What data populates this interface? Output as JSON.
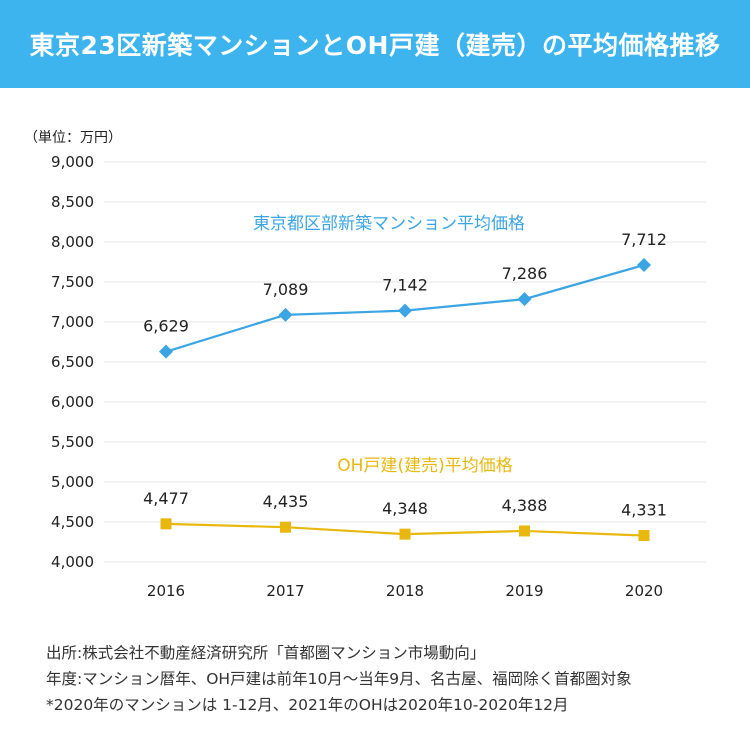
{
  "header": {
    "title": "東京23区新築マンションとOH戸建（建売）の平均価格推移"
  },
  "colors": {
    "header_bg": "#3db4ee",
    "mansion": "#3ba5e3",
    "oh": "#e8b80e",
    "grid": "#e6e6e6"
  },
  "chart_data": {
    "type": "line",
    "unit_label": "（単位：万円）",
    "x": [
      "2016",
      "2017",
      "2018",
      "2019",
      "2020"
    ],
    "ylim": [
      4000,
      9000
    ],
    "yticks": [
      "4,000",
      "4,500",
      "5,000",
      "5,500",
      "6,000",
      "6,500",
      "7,000",
      "7,500",
      "8,000",
      "8,500",
      "9,000"
    ],
    "grid": true,
    "series": [
      {
        "name": "東京都区部新築マンション平均価格",
        "values": [
          6629,
          7089,
          7142,
          7286,
          7712
        ],
        "labels": [
          "6,629",
          "7,089",
          "7,142",
          "7,286",
          "7,712"
        ],
        "marker": "diamond",
        "color": "#3ba5e3"
      },
      {
        "name": "OH戸建(建売)平均価格",
        "values": [
          4477,
          4435,
          4348,
          4388,
          4331
        ],
        "labels": [
          "4,477",
          "4,435",
          "4,348",
          "4,388",
          "4,331"
        ],
        "marker": "square",
        "color": "#e8b80e"
      }
    ]
  },
  "notes": [
    "出所:株式会社不動産経済研究所「首都圏マンション市場動向」",
    "年度:マンション暦年、OH戸建は前年10月～当年9月、名古屋、福岡除く首都圏対象",
    "*2020年のマンションは 1-12月、2021年のOHは2020年10-2020年12月"
  ]
}
